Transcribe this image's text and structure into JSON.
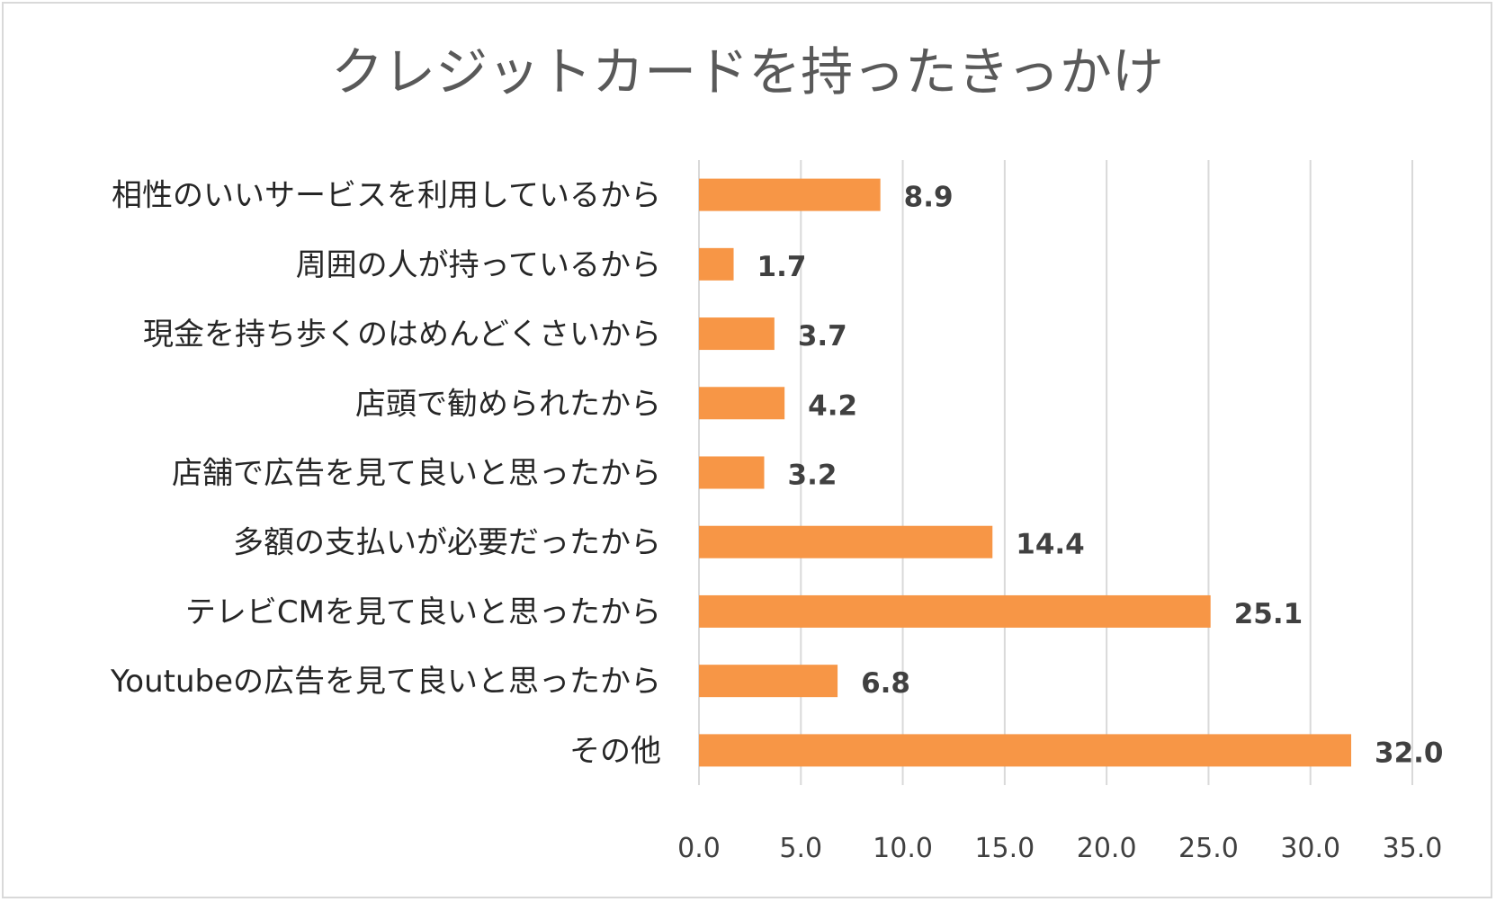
{
  "chart_data": {
    "type": "bar",
    "orientation": "horizontal",
    "title": "クレジットカードを持ったきっかけ",
    "categories": [
      "相性のいいサービスを利用しているから",
      "周囲の人が持っているから",
      "現金を持ち歩くのはめんどくさいから",
      "店頭で勧められたから",
      "店舗で広告を見て良いと思ったから",
      "多額の支払いが必要だったから",
      "テレビCMを見て良いと思ったから",
      "Youtubeの広告を見て良いと思ったから",
      "その他"
    ],
    "values": [
      8.9,
      1.7,
      3.7,
      4.2,
      3.2,
      14.4,
      25.1,
      6.8,
      32.0
    ],
    "data_labels": [
      "8.9",
      "1.7",
      "3.7",
      "4.2",
      "3.2",
      "14.4",
      "25.1",
      "6.8",
      "32.0"
    ],
    "xlim": [
      0,
      35
    ],
    "x_ticks": [
      "0.0",
      "5.0",
      "10.0",
      "15.0",
      "20.0",
      "25.0",
      "30.0",
      "35.0"
    ],
    "xlabel": "",
    "ylabel": "",
    "grid": true,
    "legend": "none",
    "colors": {
      "bar": "#f79646",
      "grid": "#d9d9d9",
      "text": "#404040",
      "title": "#595959",
      "label": "#262626"
    }
  }
}
